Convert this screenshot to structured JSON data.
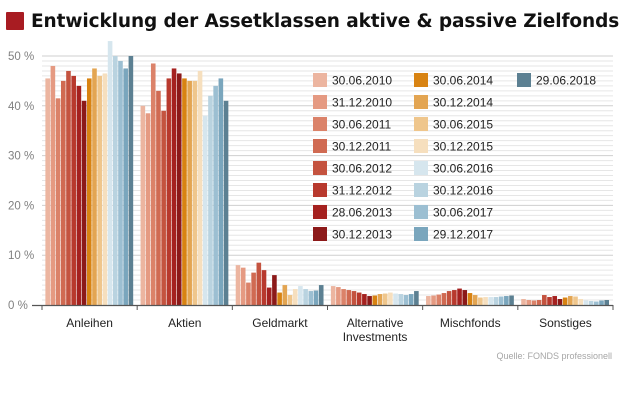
{
  "title": "Entwicklung der Assetklassen aktive & passive Zielfonds",
  "title_marker_color": "#a81c22",
  "source": "Quelle: FONDS professionell",
  "chart_data": {
    "type": "bar",
    "ylim": [
      0,
      50
    ],
    "yticks": [
      0,
      10,
      20,
      30,
      40,
      50
    ],
    "ytick_labels": [
      "0 %",
      "10 %",
      "20 %",
      "30 %",
      "40 %",
      "50 %"
    ],
    "grid": "horizontal lines every 1 %",
    "legend_placement": "inside top-right",
    "categories": [
      "Anleihen",
      "Aktien",
      "Geldmarkt",
      "Alternative Investments",
      "Mischfonds",
      "Sonstiges"
    ],
    "series": [
      {
        "name": "30.06.2010",
        "color": "#ecb5a0",
        "values": [
          45.5,
          40.0,
          8.0,
          3.8,
          1.8,
          1.2
        ]
      },
      {
        "name": "31.12.2010",
        "color": "#e59a82",
        "values": [
          48.0,
          38.5,
          7.5,
          3.6,
          1.9,
          1.0
        ]
      },
      {
        "name": "30.06.2011",
        "color": "#db8269",
        "values": [
          41.5,
          48.5,
          4.5,
          3.2,
          2.1,
          0.9
        ]
      },
      {
        "name": "30.12.2011",
        "color": "#d06a52",
        "values": [
          45.0,
          43.0,
          6.5,
          3.0,
          2.4,
          1.0
        ]
      },
      {
        "name": "30.06.2012",
        "color": "#c4533f",
        "values": [
          47.0,
          39.0,
          8.5,
          2.8,
          2.8,
          2.0
        ]
      },
      {
        "name": "31.12.2012",
        "color": "#b8392d",
        "values": [
          46.0,
          45.5,
          7.0,
          2.5,
          3.0,
          1.6
        ]
      },
      {
        "name": "28.06.2013",
        "color": "#a5211f",
        "values": [
          44.0,
          47.5,
          3.5,
          2.2,
          3.3,
          1.8
        ]
      },
      {
        "name": "30.12.2013",
        "color": "#8c1919",
        "values": [
          41.0,
          46.5,
          6.0,
          1.8,
          3.0,
          1.2
        ]
      },
      {
        "name": "30.06.2014",
        "color": "#d88312",
        "values": [
          45.5,
          45.5,
          2.5,
          1.9,
          2.4,
          1.5
        ]
      },
      {
        "name": "30.12.2014",
        "color": "#e3a552",
        "values": [
          47.5,
          45.0,
          4.0,
          2.2,
          2.0,
          1.8
        ]
      },
      {
        "name": "30.06.2015",
        "color": "#efc68c",
        "values": [
          46.0,
          45.0,
          2.0,
          2.3,
          1.5,
          1.7
        ]
      },
      {
        "name": "30.12.2015",
        "color": "#f6dfbe",
        "values": [
          46.5,
          47.0,
          3.2,
          2.5,
          1.6,
          1.2
        ]
      },
      {
        "name": "30.06.2016",
        "color": "#d6e6ee",
        "values": [
          53.0,
          38.0,
          3.8,
          2.3,
          1.6,
          0.9
        ]
      },
      {
        "name": "30.12.2016",
        "color": "#b9d3e0",
        "values": [
          50.0,
          42.0,
          3.2,
          2.2,
          1.6,
          0.8
        ]
      },
      {
        "name": "30.06.2017",
        "color": "#9cbfd2",
        "values": [
          49.0,
          44.0,
          2.8,
          2.0,
          1.7,
          0.7
        ]
      },
      {
        "name": "29.12.2017",
        "color": "#7aa6bd",
        "values": [
          47.5,
          45.5,
          2.9,
          2.2,
          1.8,
          0.9
        ]
      },
      {
        "name": "29.06.2018",
        "color": "#5c8092",
        "values": [
          50.0,
          41.0,
          4.0,
          2.8,
          1.9,
          1.0
        ]
      }
    ]
  }
}
